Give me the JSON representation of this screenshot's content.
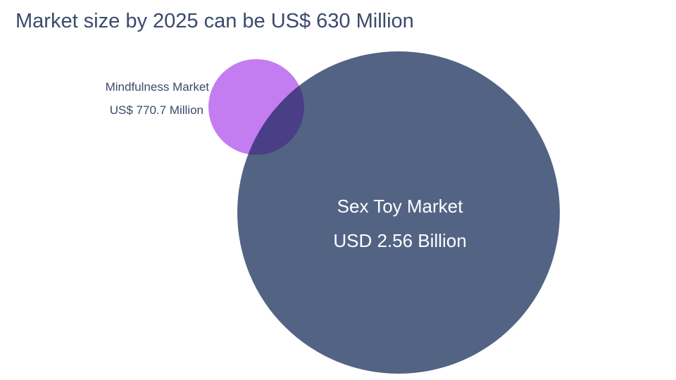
{
  "title": "Market size by 2025 can be US$ 630 Million",
  "mindfulness_market": {
    "label": "Mindfulness Market",
    "value": "US$ 770.7 Million",
    "color": "#c47df0"
  },
  "sex_toy_market": {
    "label": "Sex Toy Market",
    "value": "USD 2.56 Billion",
    "color": "#536384"
  },
  "overlap_color": "#4a3f86"
}
